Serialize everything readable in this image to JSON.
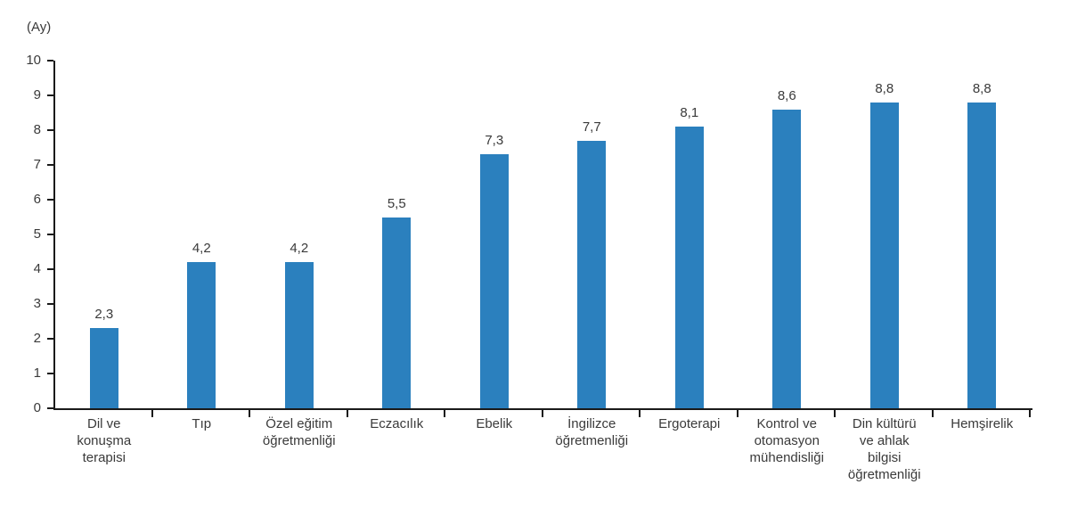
{
  "chart_data": {
    "type": "bar",
    "title": "",
    "unit_label": "(Ay)",
    "categories": [
      "Dil ve\nkonuşma\nterapisi",
      "Tıp",
      "Özel eğitim\nöğretmenliği",
      "Eczacılık",
      "Ebelik",
      "İngilizce\nöğretmenliği",
      "Ergoterapi",
      "Kontrol ve\notomasyon\nmühendisliği",
      "Din kültürü\nve ahlak\nbilgisi\nöğretmenliği",
      "Hemşirelik"
    ],
    "values": [
      2.3,
      4.2,
      4.2,
      5.5,
      7.3,
      7.7,
      8.1,
      8.6,
      8.8,
      8.8
    ],
    "value_labels": [
      "2,3",
      "4,2",
      "4,2",
      "5,5",
      "7,3",
      "7,7",
      "8,1",
      "8,6",
      "8,8",
      "8,8"
    ],
    "xlabel": "",
    "ylabel": "(Ay)",
    "ylim": [
      0,
      10
    ],
    "yticks": [
      0,
      1,
      2,
      3,
      4,
      5,
      6,
      7,
      8,
      9,
      10
    ],
    "grid": false,
    "legend": null,
    "bar_color": "#2b80be",
    "axis_color": "#1a1a1a",
    "text_color": "#3a3a3a"
  }
}
